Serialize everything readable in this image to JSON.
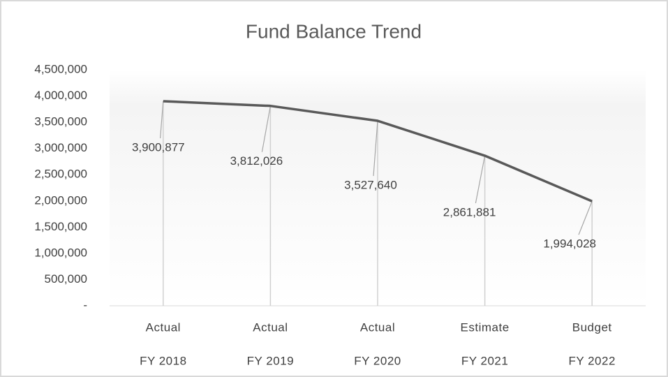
{
  "chart_data": {
    "type": "line",
    "title": "Fund Balance Trend",
    "categories": [
      [
        "Actual",
        "FY 2018"
      ],
      [
        "Actual",
        "FY 2019"
      ],
      [
        "Actual",
        "FY 2020"
      ],
      [
        "Estimate",
        "FY 2021"
      ],
      [
        "Budget",
        "FY 2022"
      ]
    ],
    "values": [
      3900877,
      3812026,
      3527640,
      2861881,
      1994028
    ],
    "value_labels": [
      "3,900,877",
      "3,812,026",
      "3,527,640",
      "2,861,881",
      "1,994,028"
    ],
    "color": "#595959",
    "ylim": [
      0,
      4500000
    ],
    "yticks": [
      {
        "value": 0,
        "label": "-"
      },
      {
        "value": 500000,
        "label": "500,000"
      },
      {
        "value": 1000000,
        "label": "1,000,000"
      },
      {
        "value": 1500000,
        "label": "1,500,000"
      },
      {
        "value": 2000000,
        "label": "2,000,000"
      },
      {
        "value": 2500000,
        "label": "2,500,000"
      },
      {
        "value": 3000000,
        "label": "3,000,000"
      },
      {
        "value": 3500000,
        "label": "3,500,000"
      },
      {
        "value": 4000000,
        "label": "4,000,000"
      },
      {
        "value": 4500000,
        "label": "4,500,000"
      }
    ],
    "drop_lines": true
  }
}
